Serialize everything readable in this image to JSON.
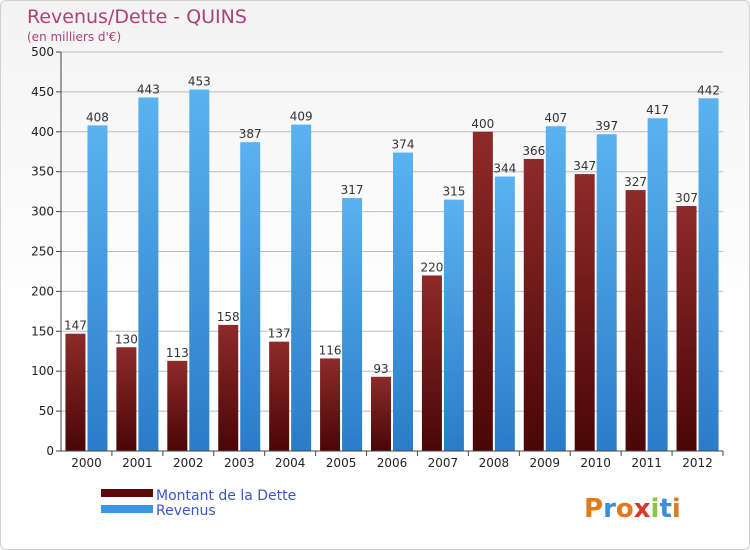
{
  "chart_data": {
    "type": "bar",
    "title": "Revenus/Dette - QUINS",
    "subtitle": "(en milliers d'€)",
    "categories": [
      "2000",
      "2001",
      "2002",
      "2003",
      "2004",
      "2005",
      "2006",
      "2007",
      "2008",
      "2009",
      "2010",
      "2011",
      "2012"
    ],
    "series": [
      {
        "name": "Montant de la Dette",
        "color": "#7a1a1a",
        "values": [
          147,
          130,
          113,
          158,
          137,
          116,
          93,
          220,
          400,
          366,
          347,
          327,
          307
        ]
      },
      {
        "name": "Revenus",
        "color": "#4aa3e6",
        "values": [
          408,
          443,
          453,
          387,
          409,
          317,
          374,
          315,
          344,
          407,
          397,
          417,
          442
        ]
      }
    ],
    "ylim": [
      0,
      500
    ],
    "yticks": [
      0,
      50,
      100,
      150,
      200,
      250,
      300,
      350,
      400,
      450,
      500
    ],
    "grid": true,
    "legend": "bottom-left"
  },
  "brand": {
    "letters": [
      "P",
      "r",
      "o",
      "x",
      "i",
      "t",
      "i"
    ],
    "colors": [
      "#e07a1a",
      "#3a8fd8",
      "#e07a1a",
      "#d83a2a",
      "#8cc63f",
      "#3a8fd8",
      "#e07a1a"
    ]
  }
}
